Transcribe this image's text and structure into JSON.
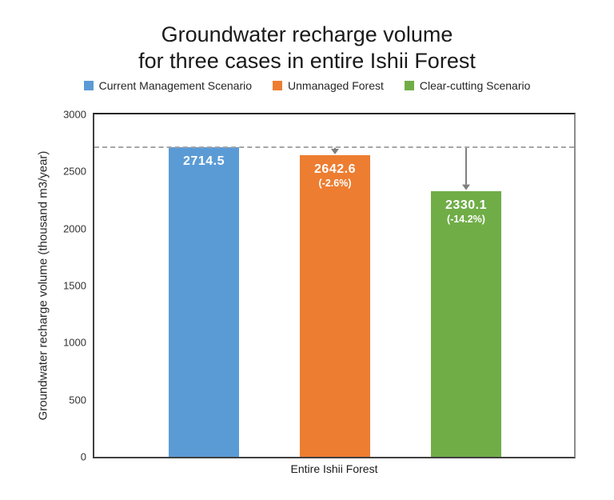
{
  "title": {
    "line1": "Groundwater recharge volume",
    "line2": "for three cases in entire Ishii Forest"
  },
  "legend": [
    {
      "label": "Current Management Scenario",
      "color": "#5b9bd5"
    },
    {
      "label": "Unmanaged Forest",
      "color": "#ed7d31"
    },
    {
      "label": "Clear-cutting Scenario",
      "color": "#70ad47"
    }
  ],
  "chart_data": {
    "type": "bar",
    "title": "Groundwater recharge volume for three cases in entire Ishii Forest",
    "xlabel": "Entire Ishii Forest",
    "ylabel": "Groundwater recharge volume (thousand m3/year)",
    "categories": [
      "Entire Ishii Forest"
    ],
    "series": [
      {
        "name": "Current Management Scenario",
        "value": 2714.5,
        "value_label": "2714.5",
        "pct_label": "",
        "color": "#5b9bd5"
      },
      {
        "name": "Unmanaged Forest",
        "value": 2642.6,
        "value_label": "2642.6",
        "pct_label": "(-2.6%)",
        "color": "#ed7d31"
      },
      {
        "name": "Clear-cutting Scenario",
        "value": 2330.1,
        "value_label": "2330.1",
        "pct_label": "(-14.2%)",
        "color": "#70ad47"
      }
    ],
    "ylim": [
      0,
      3000
    ],
    "yticks": [
      0,
      500,
      1000,
      1500,
      2000,
      2500,
      3000
    ],
    "grid": false,
    "legend_position": "top",
    "reference_line": {
      "value": 2714.5,
      "style": "dashed",
      "color": "#a6a6a6"
    },
    "arrow_color": "#7f7f7f"
  }
}
